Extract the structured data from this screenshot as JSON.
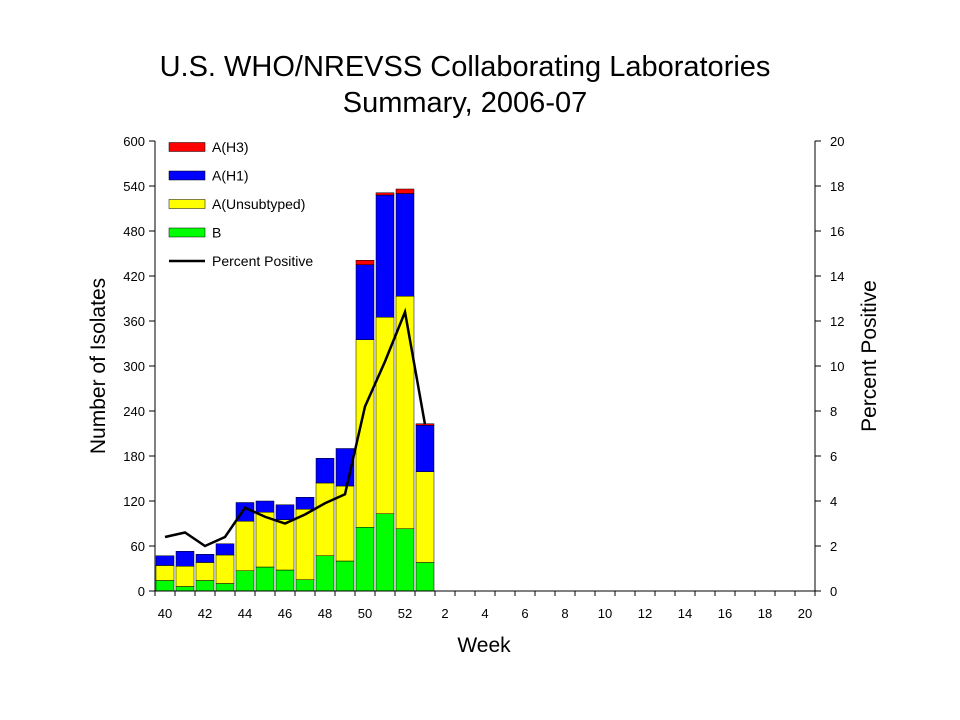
{
  "chart_data": {
    "type": "bar",
    "title": "U.S. WHO/NREVSS Collaborating Laboratories",
    "subtitle": "Summary, 2006-07",
    "xlabel": "Week",
    "ylabel": "Number of Isolates",
    "y2label": "Percent Positive",
    "ylim": [
      0,
      600
    ],
    "y2lim": [
      0,
      20
    ],
    "yticks": [
      0,
      60,
      120,
      180,
      240,
      300,
      360,
      420,
      480,
      540,
      600
    ],
    "y2ticks": [
      0,
      2,
      4,
      6,
      8,
      10,
      12,
      14,
      16,
      18,
      20
    ],
    "grid": false,
    "legend_position": "top-left",
    "week_slots": [
      40,
      41,
      42,
      43,
      44,
      45,
      46,
      47,
      48,
      49,
      50,
      51,
      52,
      1,
      2,
      3,
      4,
      5,
      6,
      7,
      8,
      9,
      10,
      11,
      12,
      13,
      14,
      15,
      16,
      17,
      18,
      19,
      20
    ],
    "x_tick_labels": [
      "40",
      "42",
      "44",
      "46",
      "48",
      "50",
      "52",
      "2",
      "4",
      "6",
      "8",
      "10",
      "12",
      "14",
      "16",
      "18",
      "20"
    ],
    "categories": [
      "40",
      "41",
      "42",
      "43",
      "44",
      "45",
      "46",
      "47",
      "48",
      "49",
      "50",
      "51",
      "52",
      "1"
    ],
    "stacked": true,
    "series": [
      {
        "name": "B",
        "color": "#00ff00",
        "values": [
          14,
          6,
          14,
          10,
          27,
          32,
          28,
          15,
          47,
          40,
          85,
          103,
          83,
          38
        ]
      },
      {
        "name": "A(Unsubtyped)",
        "color": "#ffff00",
        "values": [
          20,
          27,
          24,
          38,
          66,
          73,
          67,
          94,
          97,
          100,
          250,
          262,
          310,
          121
        ]
      },
      {
        "name": "A(H1)",
        "color": "#0000ff",
        "values": [
          13,
          20,
          11,
          15,
          25,
          15,
          20,
          16,
          33,
          50,
          100,
          163,
          137,
          62
        ]
      },
      {
        "name": "A(H3)",
        "color": "#ff0000",
        "values": [
          0,
          0,
          0,
          0,
          0,
          0,
          0,
          0,
          0,
          0,
          6,
          3,
          6,
          2
        ]
      }
    ],
    "line_series": {
      "name": "Percent Positive",
      "color": "#000000",
      "axis": "right",
      "x": [
        "40",
        "41",
        "42",
        "43",
        "44",
        "45",
        "46",
        "47",
        "48",
        "49",
        "50",
        "51",
        "52",
        "1"
      ],
      "values": [
        2.4,
        2.6,
        2.0,
        2.4,
        3.7,
        3.3,
        3.0,
        3.4,
        3.9,
        4.3,
        8.2,
        10.2,
        12.4,
        7.4
      ]
    }
  }
}
